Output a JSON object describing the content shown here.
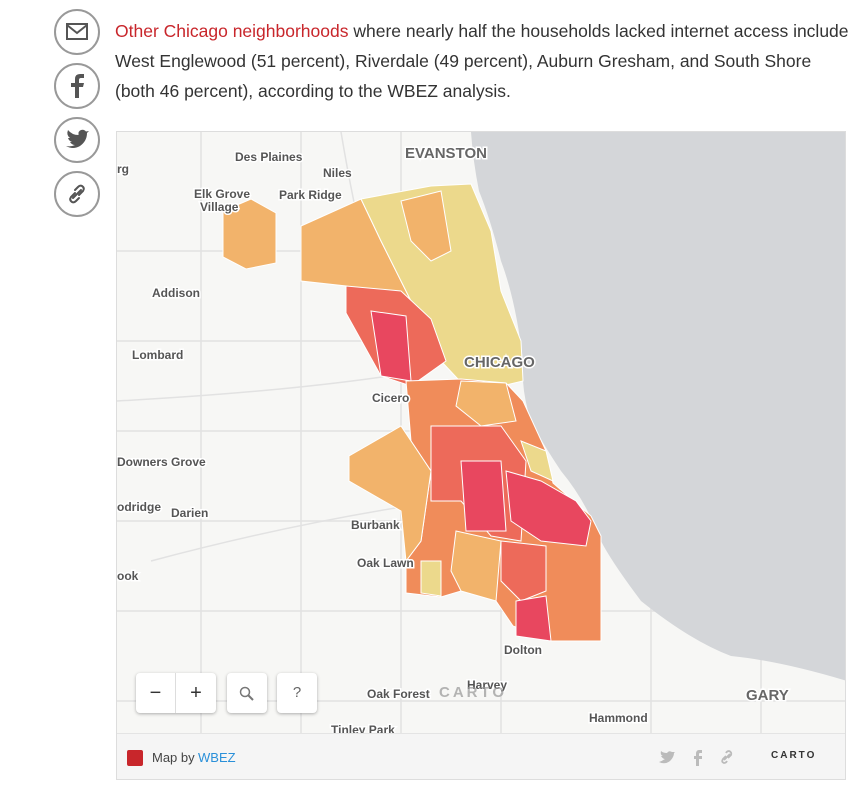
{
  "article": {
    "link_text": "Other Chicago neighborhoods",
    "text": " where nearly half the households lacked internet access include West Englewood (51 percent), Riverdale (49 percent), Auburn Gresham, and South Shore (both 46 percent), according to the WBEZ analysis."
  },
  "map": {
    "labels": [
      "Des Plaines",
      "EVANSTON",
      "Niles",
      "rg",
      "Elk Grove",
      "Village",
      "Park Ridge",
      "Addison",
      "Lombard",
      "CHICAGO",
      "Cicero",
      "Downers Grove",
      "odridge",
      "Darien",
      "Burbank",
      "Oak Lawn",
      "ook",
      "Dolton",
      "Harvey",
      "Oak Forest",
      "GARY",
      "Hammond",
      "Tinley Park"
    ],
    "controls": {
      "zoom_out": "−",
      "zoom_in": "+",
      "help": "?"
    },
    "watermark": "CARTO"
  },
  "footer": {
    "prefix": "Map by",
    "link": "WBEZ",
    "brand": "CARTO"
  }
}
